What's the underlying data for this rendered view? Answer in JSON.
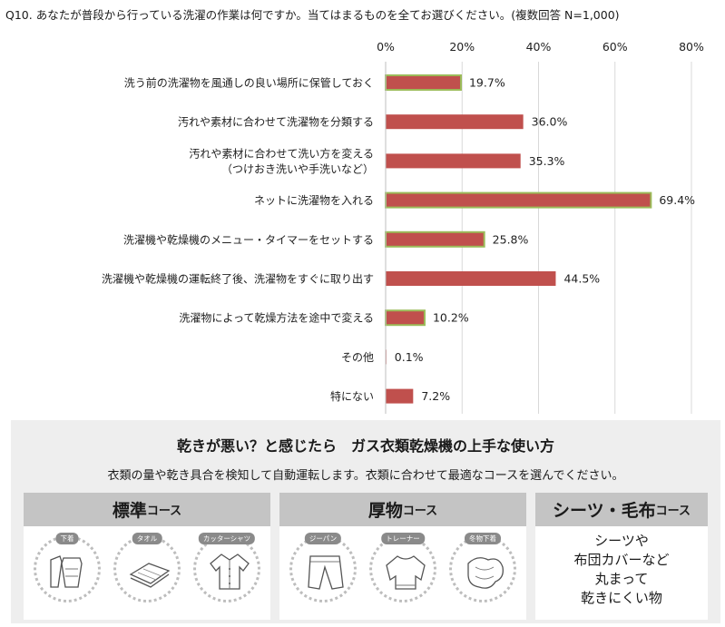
{
  "question": "Q10. あなたが普段から行っている洗濯の作業は何ですか。当てはまるものを全てお選びください。(複数回答 N=1,000)",
  "chart_data": {
    "type": "bar",
    "orientation": "horizontal",
    "categories": [
      [
        "洗う前の洗濯物を風通しの良い場所に保管しておく"
      ],
      [
        "汚れや素材に合わせて洗濯物を分類する"
      ],
      [
        "汚れや素材に合わせて洗い方を変える",
        "（つけおき洗いや手洗いなど）"
      ],
      [
        "ネットに洗濯物を入れる"
      ],
      [
        "洗濯機や乾燥機のメニュー・タイマーをセットする"
      ],
      [
        "洗濯機や乾燥機の運転終了後、洗濯物をすぐに取り出す"
      ],
      [
        "洗濯物によって乾燥方法を途中で変える"
      ],
      [
        "その他"
      ],
      [
        "特にない"
      ]
    ],
    "values": [
      19.7,
      36.0,
      35.3,
      69.4,
      25.8,
      44.5,
      10.2,
      0.1,
      7.2
    ],
    "value_labels": [
      "19.7%",
      "36.0%",
      "35.3%",
      "69.4%",
      "25.8%",
      "44.5%",
      "10.2%",
      "0.1%",
      "7.2%"
    ],
    "highlighted": [
      true,
      false,
      false,
      true,
      true,
      false,
      true,
      false,
      false
    ],
    "xlim": [
      0,
      80
    ],
    "xticks": [
      "0%",
      "20%",
      "40%",
      "60%",
      "80%"
    ],
    "tick_values": [
      0,
      20,
      40,
      60,
      80
    ],
    "grid": true,
    "colors": {
      "bar": "#c0504d",
      "highlight_border": "#9bbb59",
      "grid": "#d9d9d9"
    }
  },
  "promo": {
    "title": "乾きが悪い？と感じたら　ガス衣類乾燥機の上手な使い方",
    "subtitle": "衣類の量や乾き具合を検知して自動運転します。衣類に合わせて最適なコースを選んでください。",
    "courses": [
      {
        "name": "標準",
        "suffix": "コース",
        "items": [
          "下着",
          "タオル",
          "カッターシャツ"
        ]
      },
      {
        "name": "厚物",
        "suffix": "コース",
        "items": [
          "ジーパン",
          "トレーナー",
          "冬物下着"
        ]
      },
      {
        "name": "シーツ・毛布",
        "suffix": "コース",
        "text_lines": [
          "シーツや",
          "布団カバーなど",
          "丸まって",
          "乾きにくい物"
        ]
      }
    ]
  }
}
